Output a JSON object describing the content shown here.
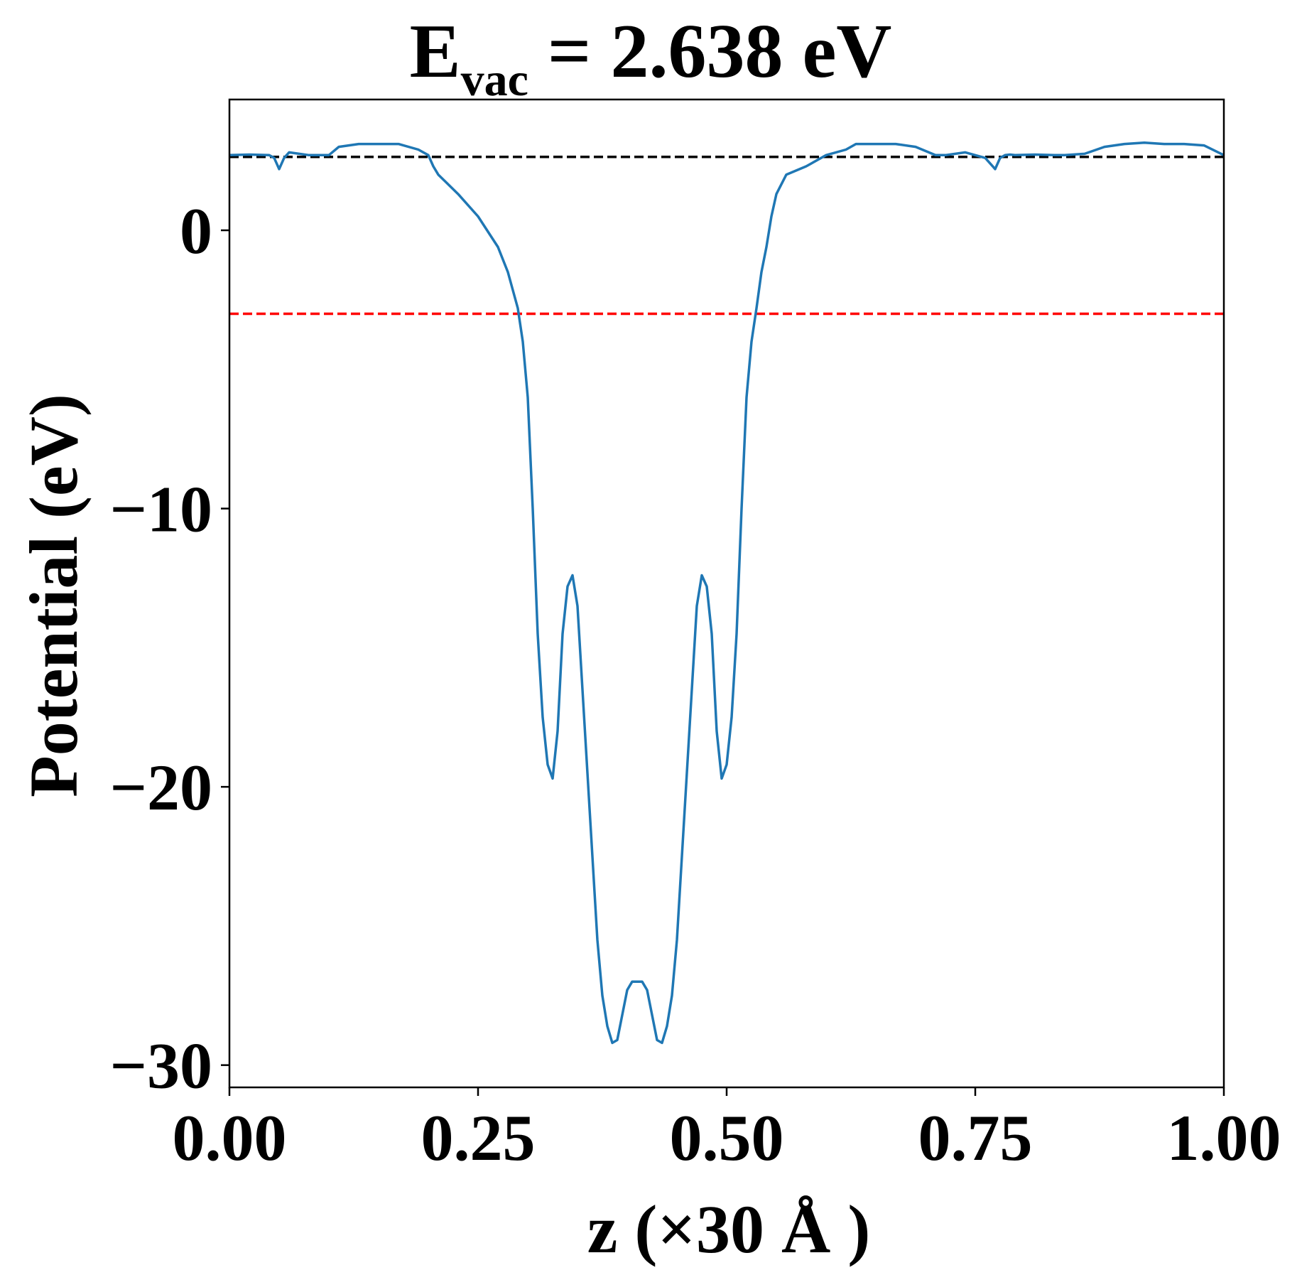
{
  "chart_data": {
    "type": "line",
    "title": {
      "main": "E",
      "subscript": "vac",
      "rest": " = 2.638 eV"
    },
    "xlabel": "z (×30 Å )",
    "ylabel": "Potential (eV)",
    "xlim": [
      0.0,
      1.0
    ],
    "ylim": [
      -30.8,
      4.7
    ],
    "xticks": [
      0.0,
      0.25,
      0.5,
      0.75,
      1.0
    ],
    "xtick_labels": [
      "0.00",
      "0.25",
      "0.50",
      "0.75",
      "1.00"
    ],
    "yticks": [
      0,
      -10,
      -20,
      -30
    ],
    "ytick_labels": [
      "0",
      "−10",
      "−20",
      "−30"
    ],
    "grid": false,
    "series": [
      {
        "color": "#1f77b4",
        "x": [
          0.0,
          0.02,
          0.04,
          0.045,
          0.05,
          0.055,
          0.06,
          0.08,
          0.1,
          0.11,
          0.13,
          0.15,
          0.17,
          0.19,
          0.2,
          0.205,
          0.21,
          0.23,
          0.25,
          0.27,
          0.28,
          0.29,
          0.295,
          0.3,
          0.305,
          0.31,
          0.315,
          0.32,
          0.325,
          0.33,
          0.335,
          0.34,
          0.345,
          0.35,
          0.355,
          0.36,
          0.365,
          0.37,
          0.375,
          0.38,
          0.385,
          0.39,
          0.395,
          0.4,
          0.405,
          0.41,
          0.415,
          0.42,
          0.425,
          0.43,
          0.435,
          0.44,
          0.445,
          0.45,
          0.455,
          0.46,
          0.465,
          0.47,
          0.475,
          0.48,
          0.485,
          0.49,
          0.495,
          0.5,
          0.505,
          0.51,
          0.515,
          0.52,
          0.525,
          0.53,
          0.535,
          0.54,
          0.545,
          0.55,
          0.56,
          0.58,
          0.6,
          0.62,
          0.63,
          0.65,
          0.67,
          0.69,
          0.71,
          0.72,
          0.74,
          0.76,
          0.77,
          0.775,
          0.78,
          0.785,
          0.79,
          0.81,
          0.83,
          0.84,
          0.86,
          0.88,
          0.9,
          0.92,
          0.94,
          0.96,
          0.98,
          1.0
        ],
        "values": [
          2.7,
          2.72,
          2.7,
          2.6,
          2.2,
          2.6,
          2.8,
          2.7,
          2.7,
          3.0,
          3.1,
          3.1,
          3.1,
          2.9,
          2.7,
          2.3,
          2.0,
          1.3,
          0.5,
          -0.6,
          -1.5,
          -2.8,
          -4.0,
          -6.0,
          -10.0,
          -14.5,
          -17.5,
          -19.2,
          -19.7,
          -18.0,
          -14.5,
          -12.8,
          -12.4,
          -13.5,
          -16.5,
          -19.5,
          -22.5,
          -25.5,
          -27.5,
          -28.6,
          -29.2,
          -29.1,
          -28.2,
          -27.3,
          -27.0,
          -27.0,
          -27.0,
          -27.3,
          -28.2,
          -29.1,
          -29.2,
          -28.6,
          -27.5,
          -25.5,
          -22.5,
          -19.5,
          -16.5,
          -13.5,
          -12.4,
          -12.8,
          -14.5,
          -18.0,
          -19.7,
          -19.2,
          -17.5,
          -14.5,
          -10.0,
          -6.0,
          -4.0,
          -2.8,
          -1.5,
          -0.6,
          0.5,
          1.3,
          2.0,
          2.3,
          2.7,
          2.9,
          3.1,
          3.1,
          3.1,
          3.0,
          2.7,
          2.7,
          2.8,
          2.6,
          2.2,
          2.6,
          2.7,
          2.72,
          2.7,
          2.72,
          2.7,
          2.7,
          2.75,
          3.0,
          3.1,
          3.15,
          3.1,
          3.1,
          3.05,
          2.7
        ]
      }
    ],
    "hlines": [
      {
        "y": 2.638,
        "color": "#000000",
        "style": "dashed"
      },
      {
        "y": -3.0,
        "color": "#ff0000",
        "style": "dashed"
      }
    ]
  }
}
